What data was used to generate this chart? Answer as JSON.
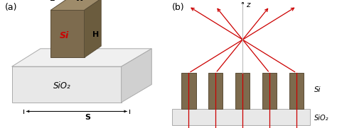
{
  "pillar_color": "#7d6b4e",
  "pillar_edge_color": "#5a4d37",
  "pillar_top_color": "#9e8b6a",
  "pillar_right_color": "#6b5c3e",
  "substrate_front_color": "#e8e8e8",
  "substrate_top_color": "#f0f0f0",
  "substrate_right_color": "#d0d0d0",
  "substrate_edge_color": "#aaaaaa",
  "si_label_color": "#cc0000",
  "arrow_color": "#cc0000",
  "label_a": "(a)",
  "label_b": "(b)",
  "label_L": "L",
  "label_W": "W",
  "label_H": "H",
  "label_Si": "Si",
  "label_SiO2_a": "SiO₂",
  "label_SiO2_b": "SiO₂",
  "label_Si_b": "Si",
  "label_S": "S",
  "label_z": "z",
  "text_color": "#000000"
}
